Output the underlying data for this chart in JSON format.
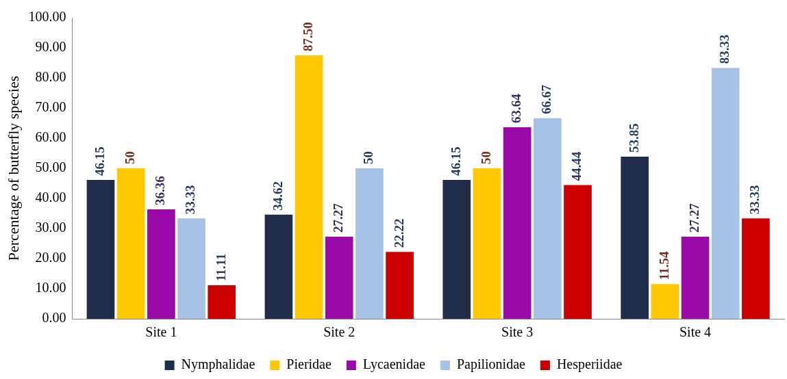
{
  "chart_data": {
    "type": "bar",
    "ylabel": "Percentage of butterfly species",
    "categories": [
      "Site 1",
      "Site 2",
      "Site 3",
      "Site 4"
    ],
    "series": [
      {
        "name": "Nymphalidae",
        "color": "#1f2d4a",
        "values": [
          46.15,
          34.62,
          46.15,
          53.85
        ],
        "value_labels": [
          "46.15",
          "34.62",
          "46.15",
          "53.85"
        ]
      },
      {
        "name": "Pieridae",
        "color": "#ffc800",
        "values": [
          50,
          87.5,
          50,
          11.54
        ],
        "value_labels": [
          "50",
          "87.50",
          "50",
          "11.54"
        ]
      },
      {
        "name": "Lycaenidae",
        "color": "#9a0aa8",
        "values": [
          36.36,
          27.27,
          63.64,
          27.27
        ],
        "value_labels": [
          "36.36",
          "27.27",
          "63.64",
          "27.27"
        ]
      },
      {
        "name": "Papilionidae",
        "color": "#a6c2e6",
        "values": [
          33.33,
          50,
          66.67,
          83.33
        ],
        "value_labels": [
          "33.33",
          "50",
          "66.67",
          "83.33"
        ]
      },
      {
        "name": "Hesperiidae",
        "color": "#cc0000",
        "values": [
          11.11,
          22.22,
          44.44,
          33.33
        ],
        "value_labels": [
          "11.11",
          "22.22",
          "44.44",
          "33.33"
        ]
      }
    ],
    "ylim": [
      0,
      100
    ],
    "yticks": [
      {
        "value": 0,
        "label": "0.00"
      },
      {
        "value": 10,
        "label": "10.00"
      },
      {
        "value": 20,
        "label": "20.00"
      },
      {
        "value": 30,
        "label": "30.00"
      },
      {
        "value": 40,
        "label": "40.00"
      },
      {
        "value": 50,
        "label": "50.00"
      },
      {
        "value": 60,
        "label": "60.00"
      },
      {
        "value": 70,
        "label": "70.00"
      },
      {
        "value": 80,
        "label": "80.00"
      },
      {
        "value": 90,
        "label": "90.00"
      },
      {
        "value": 100,
        "label": "100.00"
      }
    ],
    "grid": false,
    "legend": "bottom"
  }
}
